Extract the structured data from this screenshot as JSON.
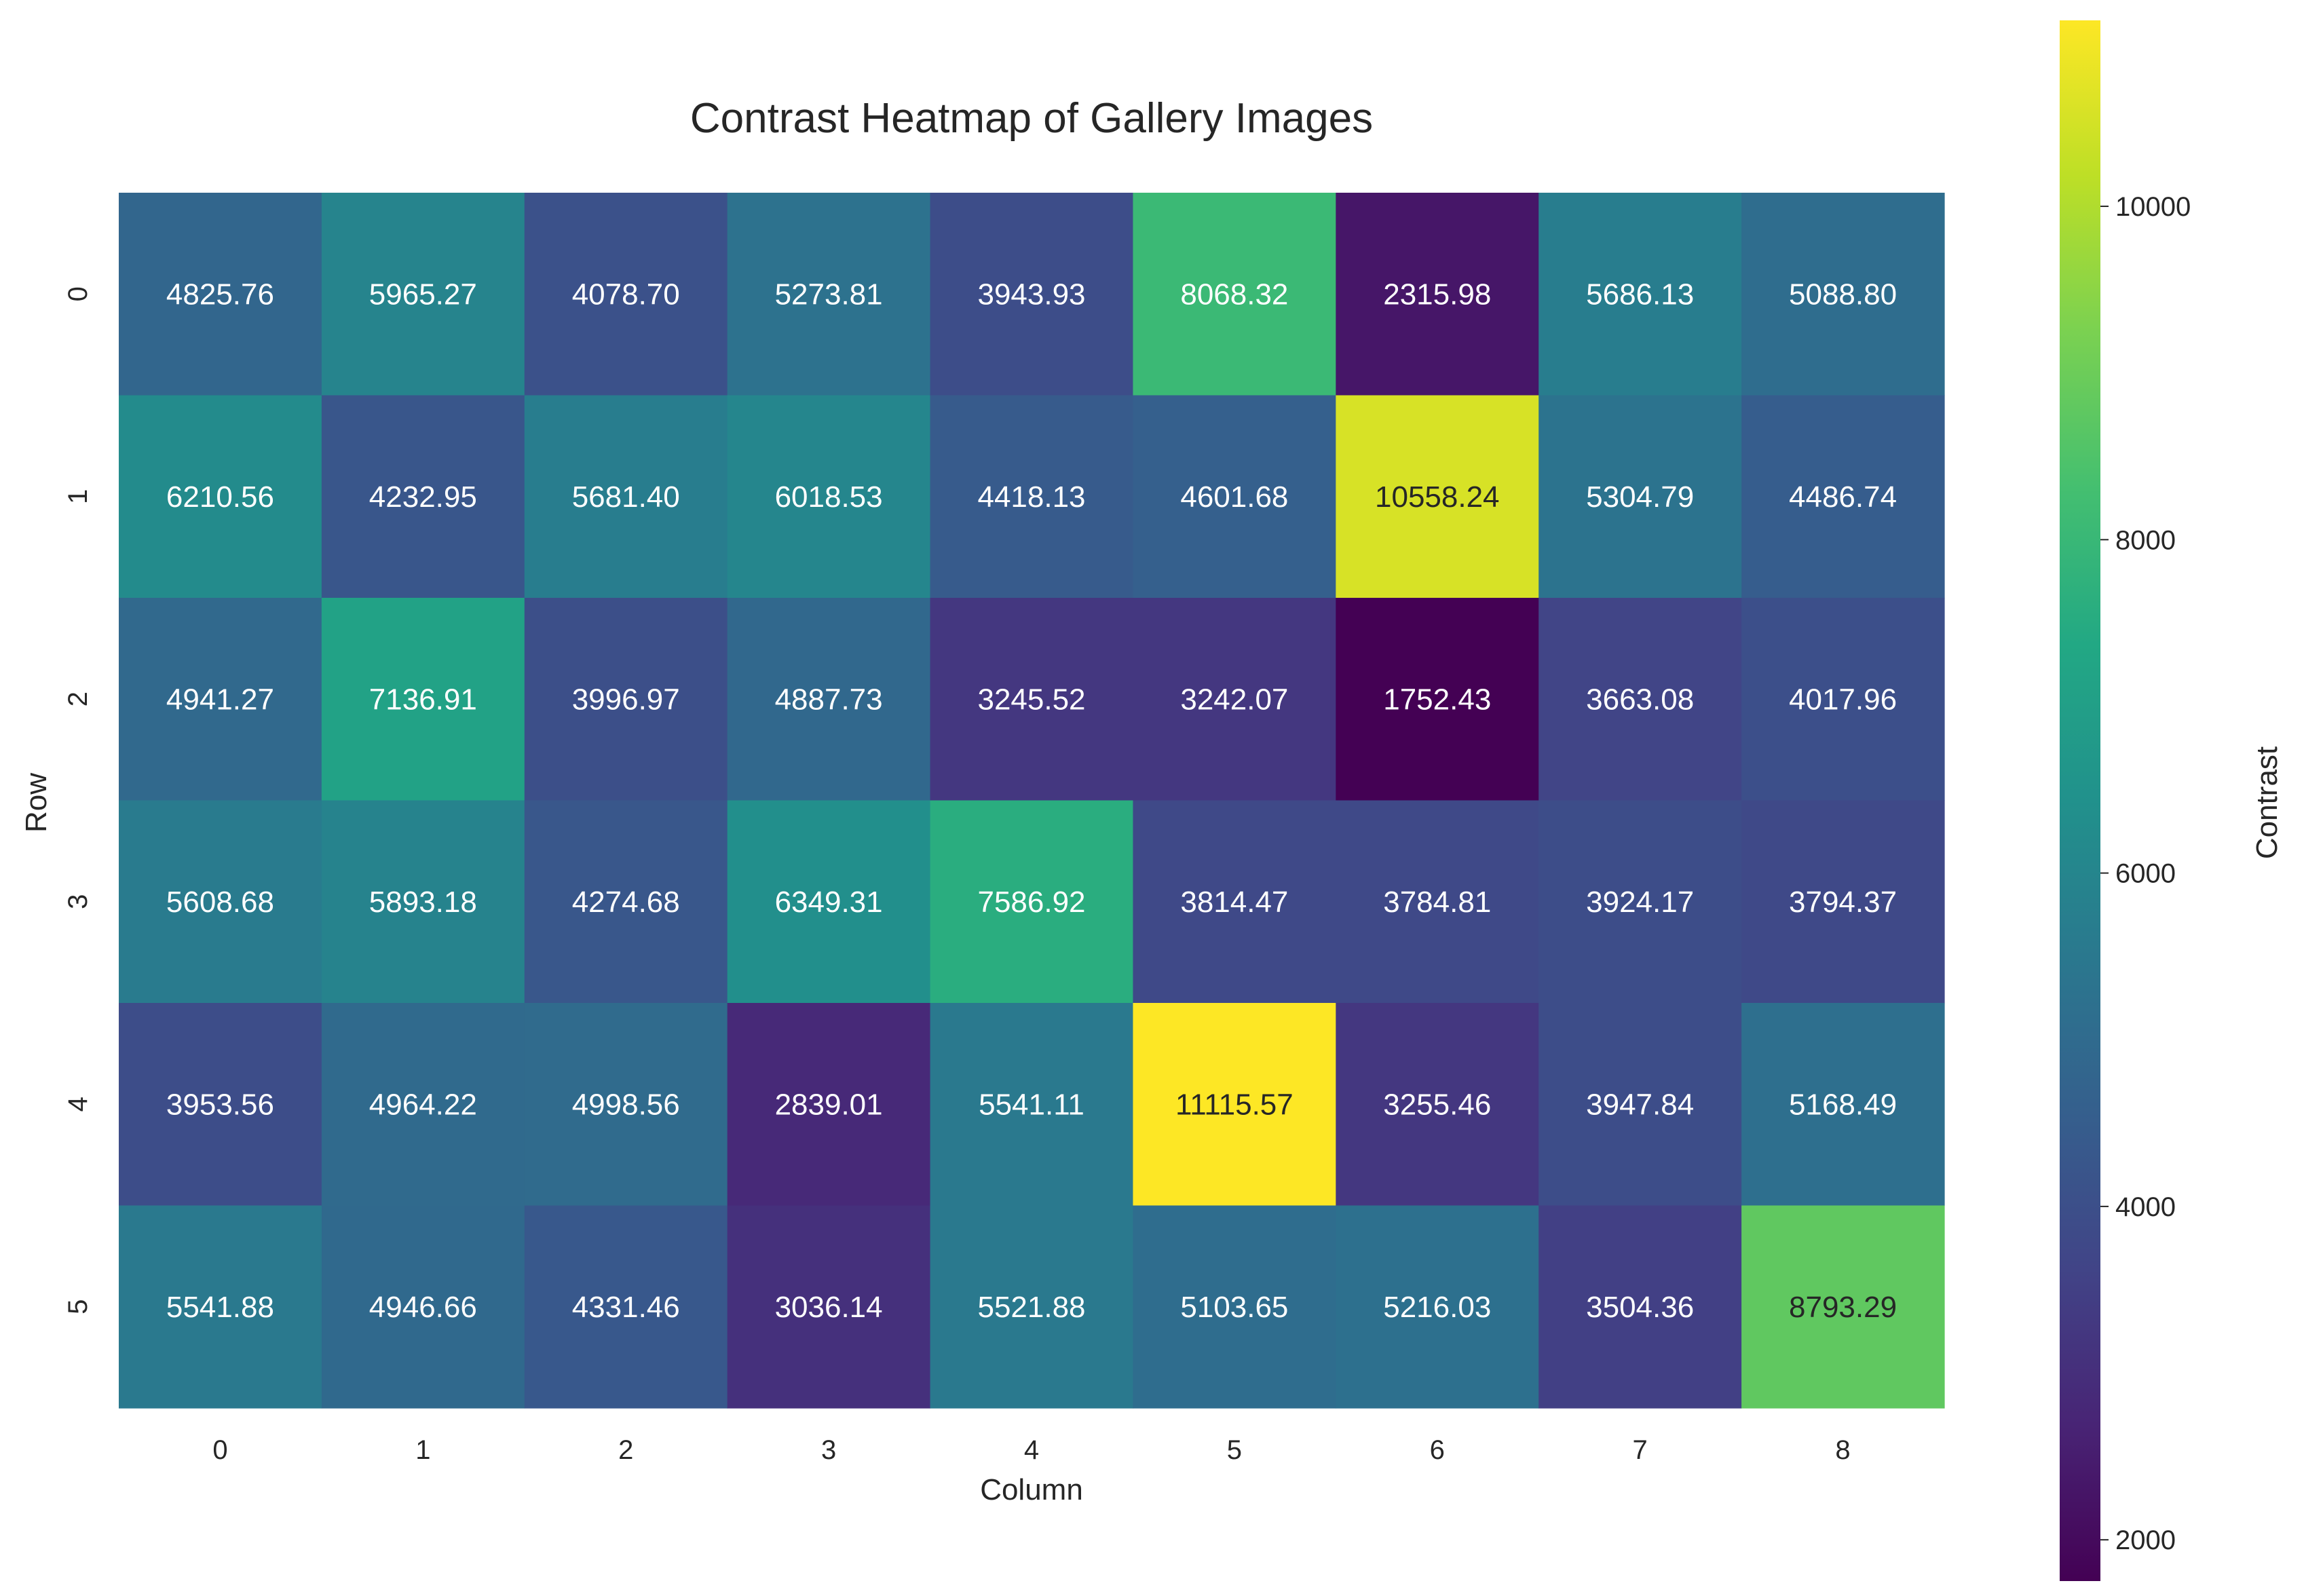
{
  "chart_data": {
    "type": "heatmap",
    "title": "Contrast Heatmap of Gallery Images",
    "xlabel": "Column",
    "ylabel": "Row",
    "x_categories": [
      "0",
      "1",
      "2",
      "3",
      "4",
      "5",
      "6",
      "7",
      "8"
    ],
    "y_categories": [
      "0",
      "1",
      "2",
      "3",
      "4",
      "5"
    ],
    "values": [
      [
        4825.76,
        5965.27,
        4078.7,
        5273.81,
        3943.93,
        8068.32,
        2315.98,
        5686.13,
        5088.8
      ],
      [
        6210.56,
        4232.95,
        5681.4,
        6018.53,
        4418.13,
        4601.68,
        10558.24,
        5304.79,
        4486.74
      ],
      [
        4941.27,
        7136.91,
        3996.97,
        4887.73,
        3245.52,
        3242.07,
        1752.43,
        3663.08,
        4017.96
      ],
      [
        5608.68,
        5893.18,
        4274.68,
        6349.31,
        7586.92,
        3814.47,
        3784.81,
        3924.17,
        3794.37
      ],
      [
        3953.56,
        4964.22,
        4998.56,
        2839.01,
        5541.11,
        11115.57,
        3255.46,
        3947.84,
        5168.49
      ],
      [
        5541.88,
        4946.66,
        4331.46,
        3036.14,
        5521.88,
        5103.65,
        5216.03,
        3504.36,
        8793.29
      ]
    ],
    "value_labels": [
      [
        "4825.76",
        "5965.27",
        "4078.70",
        "5273.81",
        "3943.93",
        "8068.32",
        "2315.98",
        "5686.13",
        "5088.80"
      ],
      [
        "6210.56",
        "4232.95",
        "5681.40",
        "6018.53",
        "4418.13",
        "4601.68",
        "10558.24",
        "5304.79",
        "4486.74"
      ],
      [
        "4941.27",
        "7136.91",
        "3996.97",
        "4887.73",
        "3245.52",
        "3242.07",
        "1752.43",
        "3663.08",
        "4017.96"
      ],
      [
        "5608.68",
        "5893.18",
        "4274.68",
        "6349.31",
        "7586.92",
        "3814.47",
        "3784.81",
        "3924.17",
        "3794.37"
      ],
      [
        "3953.56",
        "4964.22",
        "4998.56",
        "2839.01",
        "5541.11",
        "11115.57",
        "3255.46",
        "3947.84",
        "5168.49"
      ],
      [
        "5541.88",
        "4946.66",
        "4331.46",
        "3036.14",
        "5521.88",
        "5103.65",
        "5216.03",
        "3504.36",
        "8793.29"
      ]
    ],
    "colorbar": {
      "label": "Contrast",
      "colormap": "viridis",
      "range": [
        1752.43,
        11115.57
      ],
      "ticks": [
        2000,
        4000,
        6000,
        8000,
        10000
      ],
      "tick_labels": [
        "2000",
        "4000",
        "6000",
        "8000",
        "10000"
      ]
    },
    "grid": false,
    "legend": "colorbar-right"
  }
}
